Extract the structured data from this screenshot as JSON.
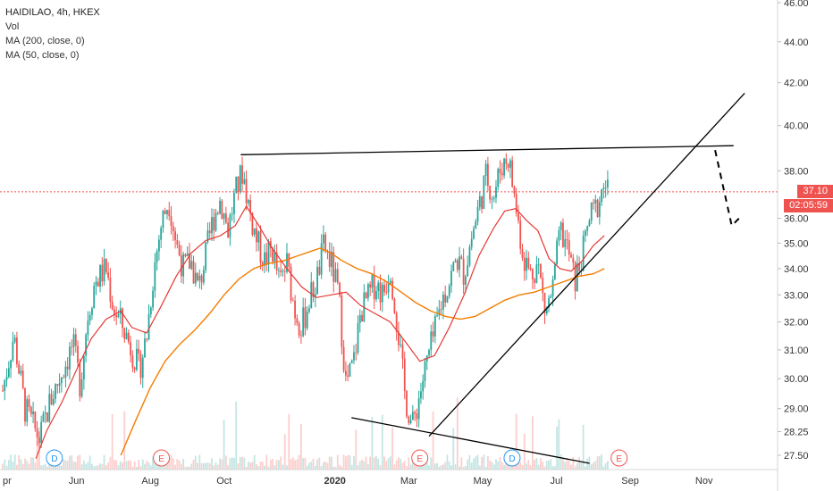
{
  "legend": {
    "title": "HAIDILAO, 4h, HKEX",
    "vol": "Vol",
    "ma200": "MA (200, close, 0)",
    "ma50": "MA (50, close, 0)"
  },
  "current_price": {
    "value": "37.10",
    "timer": "02:05:59",
    "color": "#ef5350"
  },
  "colors": {
    "up": "#26a69a",
    "down": "#ef5350",
    "ma50": "#e53935",
    "ma200": "#f57c00",
    "trendline": "#000000"
  },
  "chart_data": {
    "type": "candlestick",
    "symbol": "HAIDILAO",
    "interval": "4h",
    "exchange": "HKEX",
    "y_scale": "log",
    "y_ticks": [
      "46.00",
      "44.00",
      "42.00",
      "40.00",
      "38.00",
      "37.10",
      "36.00",
      "35.00",
      "34.00",
      "33.00",
      "32.00",
      "31.00",
      "30.00",
      "29.00",
      "28.25",
      "27.50"
    ],
    "x_ticks": [
      {
        "label": "pr",
        "month": 0.0
      },
      {
        "label": "Jun",
        "month": 2.0
      },
      {
        "label": "Aug",
        "month": 4.0
      },
      {
        "label": "Oct",
        "month": 6.0
      },
      {
        "label": "2020",
        "month": 9.0,
        "bold": true
      },
      {
        "label": "Mar",
        "month": 11.0
      },
      {
        "label": "May",
        "month": 13.0
      },
      {
        "label": "Jul",
        "month": 15.0
      },
      {
        "label": "Sep",
        "month": 17.0
      },
      {
        "label": "Nov",
        "month": 19.0
      }
    ],
    "close_path": [
      [
        0.0,
        29.6
      ],
      [
        0.3,
        31.5
      ],
      [
        0.6,
        29.0
      ],
      [
        1.0,
        28.0
      ],
      [
        1.3,
        29.3
      ],
      [
        1.6,
        30.2
      ],
      [
        1.9,
        31.2
      ],
      [
        2.1,
        29.8
      ],
      [
        2.3,
        32.2
      ],
      [
        2.5,
        33.5
      ],
      [
        2.8,
        34.0
      ],
      [
        3.0,
        32.5
      ],
      [
        3.2,
        32.0
      ],
      [
        3.5,
        31.0
      ],
      [
        3.7,
        30.3
      ],
      [
        3.9,
        31.5
      ],
      [
        4.1,
        34.0
      ],
      [
        4.3,
        35.8
      ],
      [
        4.5,
        36.8
      ],
      [
        4.7,
        35.0
      ],
      [
        4.9,
        34.0
      ],
      [
        5.1,
        34.3
      ],
      [
        5.3,
        33.2
      ],
      [
        5.5,
        34.5
      ],
      [
        5.7,
        36.0
      ],
      [
        5.9,
        36.8
      ],
      [
        6.1,
        35.5
      ],
      [
        6.3,
        37.0
      ],
      [
        6.5,
        38.0
      ],
      [
        6.7,
        36.2
      ],
      [
        6.9,
        35.0
      ],
      [
        7.1,
        34.3
      ],
      [
        7.3,
        34.8
      ],
      [
        7.5,
        33.4
      ],
      [
        7.7,
        34.2
      ],
      [
        7.9,
        32.5
      ],
      [
        8.1,
        31.8
      ],
      [
        8.3,
        32.8
      ],
      [
        8.5,
        33.5
      ],
      [
        8.7,
        34.9
      ],
      [
        8.9,
        34.2
      ],
      [
        9.1,
        33.0
      ],
      [
        9.3,
        29.8
      ],
      [
        9.5,
        30.5
      ],
      [
        9.7,
        32.4
      ],
      [
        9.9,
        32.9
      ],
      [
        10.1,
        33.5
      ],
      [
        10.3,
        33.0
      ],
      [
        10.5,
        34.1
      ],
      [
        10.7,
        31.8
      ],
      [
        10.9,
        29.4
      ],
      [
        11.1,
        28.4
      ],
      [
        11.3,
        29.5
      ],
      [
        11.5,
        30.6
      ],
      [
        11.7,
        31.6
      ],
      [
        11.9,
        32.8
      ],
      [
        12.1,
        33.5
      ],
      [
        12.3,
        34.4
      ],
      [
        12.5,
        33.8
      ],
      [
        12.7,
        35.2
      ],
      [
        12.9,
        36.5
      ],
      [
        13.1,
        37.8
      ],
      [
        13.3,
        36.9
      ],
      [
        13.5,
        38.2
      ],
      [
        13.7,
        38.6
      ],
      [
        13.9,
        36.5
      ],
      [
        14.1,
        34.5
      ],
      [
        14.3,
        33.8
      ],
      [
        14.5,
        34.2
      ],
      [
        14.7,
        32.3
      ],
      [
        14.9,
        33.2
      ],
      [
        15.1,
        35.5
      ],
      [
        15.3,
        34.8
      ],
      [
        15.5,
        33.5
      ],
      [
        15.7,
        34.5
      ],
      [
        15.9,
        36.0
      ],
      [
        16.1,
        36.5
      ],
      [
        16.3,
        37.5
      ],
      [
        16.4,
        37.1
      ]
    ],
    "ma50": [
      [
        0.9,
        27.4
      ],
      [
        1.2,
        28.3
      ],
      [
        1.6,
        29.2
      ],
      [
        2.0,
        30.3
      ],
      [
        2.4,
        31.4
      ],
      [
        2.8,
        32.1
      ],
      [
        3.2,
        32.4
      ],
      [
        3.5,
        31.8
      ],
      [
        3.9,
        31.6
      ],
      [
        4.3,
        32.6
      ],
      [
        4.7,
        33.7
      ],
      [
        5.1,
        34.6
      ],
      [
        5.5,
        35.1
      ],
      [
        5.9,
        35.3
      ],
      [
        6.3,
        35.7
      ],
      [
        6.6,
        36.5
      ],
      [
        6.9,
        35.8
      ],
      [
        7.3,
        34.8
      ],
      [
        7.7,
        34.0
      ],
      [
        8.1,
        33.3
      ],
      [
        8.5,
        32.9
      ],
      [
        8.9,
        33.0
      ],
      [
        9.3,
        33.1
      ],
      [
        9.7,
        32.6
      ],
      [
        10.1,
        32.3
      ],
      [
        10.5,
        32.0
      ],
      [
        10.9,
        31.3
      ],
      [
        11.3,
        30.6
      ],
      [
        11.7,
        30.8
      ],
      [
        12.1,
        31.8
      ],
      [
        12.5,
        33.0
      ],
      [
        12.9,
        34.5
      ],
      [
        13.3,
        35.6
      ],
      [
        13.6,
        36.3
      ],
      [
        13.9,
        36.4
      ],
      [
        14.2,
        35.9
      ],
      [
        14.5,
        35.5
      ],
      [
        14.8,
        34.4
      ],
      [
        15.1,
        34.0
      ],
      [
        15.4,
        33.9
      ],
      [
        15.7,
        34.3
      ],
      [
        16.0,
        34.9
      ],
      [
        16.3,
        35.3
      ]
    ],
    "ma200": [
      [
        3.2,
        27.5
      ],
      [
        3.6,
        28.6
      ],
      [
        4.0,
        29.7
      ],
      [
        4.4,
        30.6
      ],
      [
        4.8,
        31.2
      ],
      [
        5.2,
        31.7
      ],
      [
        5.6,
        32.3
      ],
      [
        6.0,
        33.0
      ],
      [
        6.4,
        33.6
      ],
      [
        6.8,
        34.0
      ],
      [
        7.2,
        34.2
      ],
      [
        7.6,
        34.3
      ],
      [
        8.0,
        34.5
      ],
      [
        8.4,
        34.7
      ],
      [
        8.6,
        34.8
      ],
      [
        8.9,
        34.6
      ],
      [
        9.2,
        34.3
      ],
      [
        9.6,
        34.0
      ],
      [
        10.0,
        33.8
      ],
      [
        10.4,
        33.5
      ],
      [
        10.8,
        33.1
      ],
      [
        11.2,
        32.7
      ],
      [
        11.6,
        32.4
      ],
      [
        12.0,
        32.2
      ],
      [
        12.4,
        32.1
      ],
      [
        12.8,
        32.2
      ],
      [
        13.2,
        32.5
      ],
      [
        13.6,
        32.8
      ],
      [
        14.0,
        33.0
      ],
      [
        14.4,
        33.1
      ],
      [
        14.8,
        33.3
      ],
      [
        15.2,
        33.5
      ],
      [
        15.6,
        33.7
      ],
      [
        16.0,
        33.8
      ],
      [
        16.3,
        34.0
      ]
    ],
    "trendlines": [
      {
        "name": "resistance",
        "points": [
          [
            6.45,
            38.7
          ],
          [
            19.8,
            39.1
          ]
        ]
      },
      {
        "name": "support-rising",
        "points": [
          [
            11.55,
            28.1
          ],
          [
            20.1,
            41.5
          ]
        ]
      },
      {
        "name": "support-falling",
        "points": [
          [
            9.45,
            28.7
          ],
          [
            15.9,
            27.25
          ]
        ]
      }
    ],
    "projection": {
      "points": [
        [
          19.3,
          38.9
        ],
        [
          19.75,
          35.7
        ],
        [
          19.95,
          36.0
        ]
      ],
      "style": "dashed"
    },
    "event_markers": [
      {
        "label": "D",
        "month": 1.4,
        "color": "#2196f3"
      },
      {
        "label": "E",
        "month": 4.3,
        "color": "#ef5350"
      },
      {
        "label": "E",
        "month": 11.3,
        "color": "#ef5350"
      },
      {
        "label": "D",
        "month": 13.8,
        "color": "#2196f3"
      },
      {
        "label": "E",
        "month": 16.7,
        "color": "#ef5350"
      }
    ]
  }
}
